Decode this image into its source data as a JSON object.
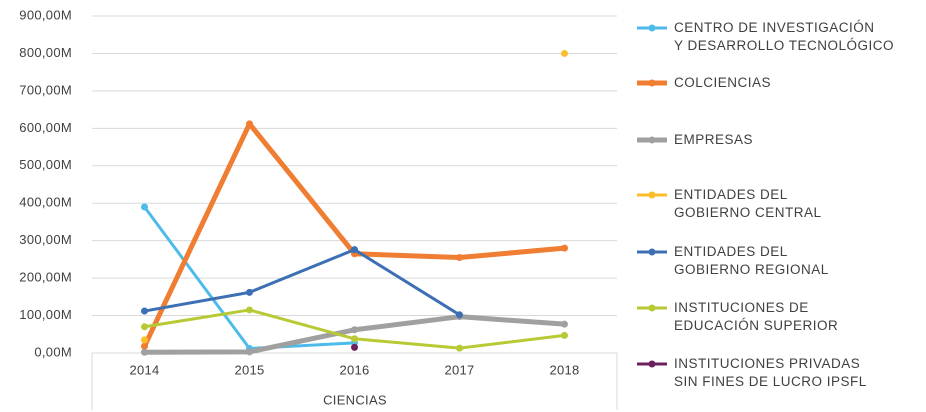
{
  "chart_data": {
    "type": "line",
    "x_label": "CIENCIAS",
    "categories": [
      "2014",
      "2015",
      "2016",
      "2017",
      "2018"
    ],
    "ylim": [
      0,
      900
    ],
    "yticks": [
      {
        "value": 0,
        "label": "0,00M"
      },
      {
        "value": 100,
        "label": "100,00M"
      },
      {
        "value": 200,
        "label": "200,00M"
      },
      {
        "value": 300,
        "label": "300,00M"
      },
      {
        "value": 400,
        "label": "400,00M"
      },
      {
        "value": 500,
        "label": "500,00M"
      },
      {
        "value": 600,
        "label": "600,00M"
      },
      {
        "value": 700,
        "label": "700,00M"
      },
      {
        "value": 800,
        "label": "800,00M"
      },
      {
        "value": 900,
        "label": "900,00M"
      }
    ],
    "grid": true,
    "legend": "right",
    "series": [
      {
        "name": "CENTRO DE INVESTIGACIÓN\nY DESARROLLO TECNOLÓGICO",
        "color": "#4dbbea",
        "line_width": 3,
        "values": [
          390,
          12,
          27,
          null,
          null
        ]
      },
      {
        "name": "COLCIENCIAS",
        "color": "#ef7d32",
        "line_width": 5,
        "values": [
          18,
          612,
          265,
          255,
          280
        ]
      },
      {
        "name": "EMPRESAS",
        "color": "#a0a0a0",
        "line_width": 5,
        "values": [
          2,
          3,
          62,
          97,
          77
        ]
      },
      {
        "name": "ENTIDADES DEL\nGOBIERNO CENTRAL",
        "color": "#fbbd2a",
        "line_width": 3,
        "values": [
          35,
          null,
          null,
          null,
          800
        ]
      },
      {
        "name": "ENTIDADES DEL\nGOBIERNO REGIONAL",
        "color": "#3d6fb5",
        "line_width": 3,
        "values": [
          112,
          162,
          276,
          102,
          null
        ]
      },
      {
        "name": "INSTITUCIONES DE\nEDUCACIÓN SUPERIOR",
        "color": "#b8c934",
        "line_width": 3,
        "values": [
          70,
          115,
          38,
          13,
          47
        ]
      },
      {
        "name": "INSTITUCIONES PRIVADAS\nSIN FINES DE LUCRO IPSFL",
        "color": "#6e1f5e",
        "line_width": 3,
        "values": [
          null,
          null,
          15,
          null,
          null
        ]
      }
    ]
  }
}
